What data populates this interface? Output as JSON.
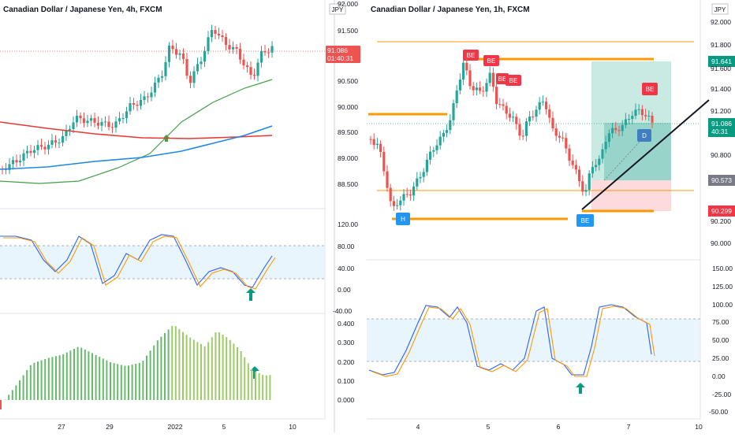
{
  "colors": {
    "up": "#26a69a",
    "down": "#ef5350",
    "ma_red": "#e53935",
    "ma_green": "#43a047",
    "ma_blue": "#1e88e5",
    "stoch_k": "#2962ff",
    "stoch_d": "#ff9800",
    "level": "#ff9800",
    "price_badge": "#ef5350",
    "tp_badge": "#089981",
    "sl_badge": "#f23645",
    "entry_badge": "#787b86"
  },
  "left_chart": {
    "title": "Canadian Dollar / Japanese Yen, 4h, FXCM",
    "currency": "JPY",
    "price_badge": {
      "value": "91.086",
      "timer": "01:40:31"
    },
    "y_ticks": [
      "92.000",
      "91.500",
      "91.000",
      "90.500",
      "90.000",
      "89.500",
      "89.000",
      "88.500"
    ],
    "stoch_ticks": [
      "120.00",
      "80.00",
      "40.00",
      "0.00",
      "-40.00"
    ],
    "osc_ticks": [
      "0.400",
      "0.300",
      "0.200",
      "0.100",
      "0.000"
    ],
    "x_ticks": [
      "27",
      "29",
      "2022",
      "5",
      "10"
    ]
  },
  "right_chart": {
    "title": "Canadian Dollar / Japanese Yen, 1h, FXCM",
    "currency": "JPY",
    "y_ticks": [
      "92.000",
      "91.800",
      "91.600",
      "91.400",
      "91.200",
      "91.000",
      "90.800",
      "90.600",
      "90.400",
      "90.200",
      "90.000"
    ],
    "price_badges": [
      {
        "value": "91.641",
        "kind": "tp"
      },
      {
        "value": "91.086",
        "timer": "40:31",
        "kind": "price"
      },
      {
        "value": "90.573",
        "kind": "entry"
      },
      {
        "value": "90.299",
        "kind": "sl"
      }
    ],
    "stoch_ticks": [
      "150.00",
      "125.00",
      "100.00",
      "75.00",
      "50.00",
      "25.00",
      "0.00",
      "-25.00",
      "-50.00"
    ],
    "x_ticks": [
      "4",
      "5",
      "6",
      "7",
      "10"
    ],
    "pattern_labels": [
      "BE",
      "BE",
      "BE",
      "BE",
      "BE",
      "BE",
      "BE",
      "D",
      "H"
    ]
  }
}
